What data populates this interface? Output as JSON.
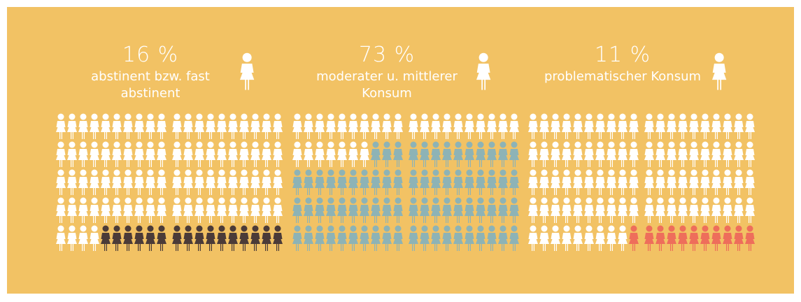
{
  "chart_data": {
    "type": "pictogram",
    "categories": [
      "abstinent bzw. fast abstinent",
      "moderater u. mittlerer Konsum",
      "problematischer Konsum"
    ],
    "values": [
      16,
      73,
      11
    ],
    "value_labels": [
      "16 %",
      "73 %",
      "11 %"
    ],
    "colors": [
      "#4b3b38",
      "#8db3b6",
      "#ee6e5b"
    ]
  }
}
